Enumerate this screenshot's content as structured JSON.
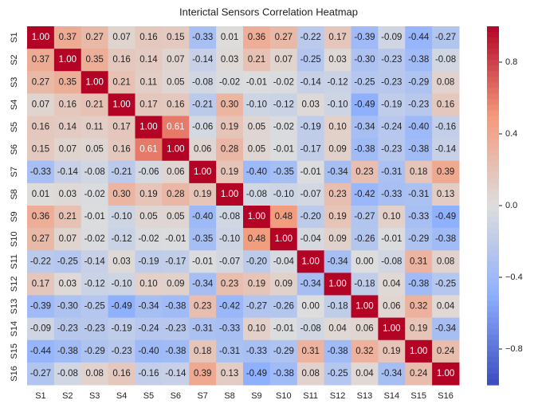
{
  "chart_data": {
    "type": "heatmap",
    "title": "Interictal Sensors Correlation Heatmap",
    "categories": [
      "S1",
      "S2",
      "S3",
      "S4",
      "S5",
      "S6",
      "S7",
      "S8",
      "S9",
      "S10",
      "S11",
      "S12",
      "S13",
      "S14",
      "S15",
      "S16"
    ],
    "values": [
      [
        1.0,
        0.37,
        0.27,
        0.07,
        0.16,
        0.15,
        -0.33,
        0.01,
        0.36,
        0.27,
        -0.22,
        0.17,
        -0.39,
        -0.09,
        -0.44,
        -0.27
      ],
      [
        0.37,
        1.0,
        0.35,
        0.16,
        0.14,
        0.07,
        -0.14,
        0.03,
        0.21,
        0.07,
        -0.25,
        0.03,
        -0.3,
        -0.23,
        -0.38,
        -0.08
      ],
      [
        0.27,
        0.35,
        1.0,
        0.21,
        0.11,
        0.05,
        -0.08,
        -0.02,
        -0.01,
        -0.02,
        -0.14,
        -0.12,
        -0.25,
        -0.23,
        -0.29,
        0.08
      ],
      [
        0.07,
        0.16,
        0.21,
        1.0,
        0.17,
        0.16,
        -0.21,
        0.3,
        -0.1,
        -0.12,
        0.03,
        -0.1,
        -0.49,
        -0.19,
        -0.23,
        0.16
      ],
      [
        0.16,
        0.14,
        0.11,
        0.17,
        1.0,
        0.61,
        -0.06,
        0.19,
        0.05,
        -0.02,
        -0.19,
        0.1,
        -0.34,
        -0.24,
        -0.4,
        -0.16
      ],
      [
        0.15,
        0.07,
        0.05,
        0.16,
        0.61,
        1.0,
        0.06,
        0.28,
        0.05,
        -0.01,
        -0.17,
        0.09,
        -0.38,
        -0.23,
        -0.38,
        -0.14
      ],
      [
        -0.33,
        -0.14,
        -0.08,
        -0.21,
        -0.06,
        0.06,
        1.0,
        0.19,
        -0.4,
        -0.35,
        -0.01,
        -0.34,
        0.23,
        -0.31,
        0.18,
        0.39
      ],
      [
        0.01,
        0.03,
        -0.02,
        0.3,
        0.19,
        0.28,
        0.19,
        1.0,
        -0.08,
        -0.1,
        -0.07,
        0.23,
        -0.42,
        -0.33,
        -0.31,
        0.13
      ],
      [
        0.36,
        0.21,
        -0.01,
        -0.1,
        0.05,
        0.05,
        -0.4,
        -0.08,
        1.0,
        0.48,
        -0.2,
        0.19,
        -0.27,
        0.1,
        -0.33,
        -0.49
      ],
      [
        0.27,
        0.07,
        -0.02,
        -0.12,
        -0.02,
        -0.01,
        -0.35,
        -0.1,
        0.48,
        1.0,
        -0.04,
        0.09,
        -0.26,
        -0.01,
        -0.29,
        -0.38
      ],
      [
        -0.22,
        -0.25,
        -0.14,
        0.03,
        -0.19,
        -0.17,
        -0.01,
        -0.07,
        -0.2,
        -0.04,
        1.0,
        -0.34,
        0.0,
        -0.08,
        0.31,
        0.08
      ],
      [
        0.17,
        0.03,
        -0.12,
        -0.1,
        0.1,
        0.09,
        -0.34,
        0.23,
        0.19,
        0.09,
        -0.34,
        1.0,
        -0.18,
        0.04,
        -0.38,
        -0.25
      ],
      [
        -0.39,
        -0.3,
        -0.25,
        -0.49,
        -0.34,
        -0.38,
        0.23,
        -0.42,
        -0.27,
        -0.26,
        0.0,
        -0.18,
        1.0,
        0.06,
        0.32,
        0.04
      ],
      [
        -0.09,
        -0.23,
        -0.23,
        -0.19,
        -0.24,
        -0.23,
        -0.31,
        -0.33,
        0.1,
        -0.01,
        -0.08,
        0.04,
        0.06,
        1.0,
        0.19,
        -0.34
      ],
      [
        -0.44,
        -0.38,
        -0.29,
        -0.23,
        -0.4,
        -0.38,
        0.18,
        -0.31,
        -0.33,
        -0.29,
        0.31,
        -0.38,
        0.32,
        0.19,
        1.0,
        0.24
      ],
      [
        -0.27,
        -0.08,
        0.08,
        0.16,
        -0.16,
        -0.14,
        0.39,
        0.13,
        -0.49,
        -0.38,
        0.08,
        -0.25,
        0.04,
        -0.34,
        0.24,
        1.0
      ]
    ],
    "value_labels": [
      [
        "1.00",
        "0.37",
        "0.27",
        "0.07",
        "0.16",
        "0.15",
        "-0.33",
        "0.01",
        "0.36",
        "0.27",
        "-0.22",
        "0.17",
        "-0.39",
        "-0.09",
        "-0.44",
        "-0.27"
      ],
      [
        "0.37",
        "1.00",
        "0.35",
        "0.16",
        "0.14",
        "0.07",
        "-0.14",
        "0.03",
        "0.21",
        "0.07",
        "-0.25",
        "0.03",
        "-0.30",
        "-0.23",
        "-0.38",
        "-0.08"
      ],
      [
        "0.27",
        "0.35",
        "1.00",
        "0.21",
        "0.11",
        "0.05",
        "-0.08",
        "-0.02",
        "-0.01",
        "-0.02",
        "-0.14",
        "-0.12",
        "-0.25",
        "-0.23",
        "-0.29",
        "0.08"
      ],
      [
        "0.07",
        "0.16",
        "0.21",
        "1.00",
        "0.17",
        "0.16",
        "-0.21",
        "0.30",
        "-0.10",
        "-0.12",
        "0.03",
        "-0.10",
        "-0.49",
        "-0.19",
        "-0.23",
        "0.16"
      ],
      [
        "0.16",
        "0.14",
        "0.11",
        "0.17",
        "1.00",
        "0.61",
        "-0.06",
        "0.19",
        "0.05",
        "-0.02",
        "-0.19",
        "0.10",
        "-0.34",
        "-0.24",
        "-0.40",
        "-0.16"
      ],
      [
        "0.15",
        "0.07",
        "0.05",
        "0.16",
        "0.61",
        "1.00",
        "0.06",
        "0.28",
        "0.05",
        "-0.01",
        "-0.17",
        "0.09",
        "-0.38",
        "-0.23",
        "-0.38",
        "-0.14"
      ],
      [
        "-0.33",
        "-0.14",
        "-0.08",
        "-0.21",
        "-0.06",
        "0.06",
        "1.00",
        "0.19",
        "-0.40",
        "-0.35",
        "-0.01",
        "-0.34",
        "0.23",
        "-0.31",
        "0.18",
        "0.39"
      ],
      [
        "0.01",
        "0.03",
        "-0.02",
        "0.30",
        "0.19",
        "0.28",
        "0.19",
        "1.00",
        "-0.08",
        "-0.10",
        "-0.07",
        "0.23",
        "-0.42",
        "-0.33",
        "-0.31",
        "0.13"
      ],
      [
        "0.36",
        "0.21",
        "-0.01",
        "-0.10",
        "0.05",
        "0.05",
        "-0.40",
        "-0.08",
        "1.00",
        "0.48",
        "-0.20",
        "0.19",
        "-0.27",
        "0.10",
        "-0.33",
        "-0.49"
      ],
      [
        "0.27",
        "0.07",
        "-0.02",
        "-0.12",
        "-0.02",
        "-0.01",
        "-0.35",
        "-0.10",
        "0.48",
        "1.00",
        "-0.04",
        "0.09",
        "-0.26",
        "-0.01",
        "-0.29",
        "-0.38"
      ],
      [
        "-0.22",
        "-0.25",
        "-0.14",
        "0.03",
        "-0.19",
        "-0.17",
        "-0.01",
        "-0.07",
        "-0.20",
        "-0.04",
        "1.00",
        "-0.34",
        "0.00",
        "-0.08",
        "0.31",
        "0.08"
      ],
      [
        "0.17",
        "0.03",
        "-0.12",
        "-0.10",
        "0.10",
        "0.09",
        "-0.34",
        "0.23",
        "0.19",
        "0.09",
        "-0.34",
        "1.00",
        "-0.18",
        "0.04",
        "-0.38",
        "-0.25"
      ],
      [
        "-0.39",
        "-0.30",
        "-0.25",
        "-0.49",
        "-0.34",
        "-0.38",
        "0.23",
        "-0.42",
        "-0.27",
        "-0.26",
        "0.00",
        "-0.18",
        "1.00",
        "0.06",
        "0.32",
        "0.04"
      ],
      [
        "-0.09",
        "-0.23",
        "-0.23",
        "-0.19",
        "-0.24",
        "-0.23",
        "-0.31",
        "-0.33",
        "0.10",
        "-0.01",
        "-0.08",
        "0.04",
        "0.06",
        "1.00",
        "0.19",
        "-0.34"
      ],
      [
        "-0.44",
        "-0.38",
        "-0.29",
        "-0.23",
        "-0.40",
        "-0.38",
        "0.18",
        "-0.31",
        "-0.33",
        "-0.29",
        "0.31",
        "-0.38",
        "0.32",
        "0.19",
        "1.00",
        "0.24"
      ],
      [
        "-0.27",
        "-0.08",
        "0.08",
        "0.16",
        "-0.16",
        "-0.14",
        "0.39",
        "0.13",
        "-0.49",
        "-0.38",
        "0.08",
        "-0.25",
        "0.04",
        "-0.34",
        "0.24",
        "1.00"
      ]
    ],
    "colormap": "coolwarm",
    "clim": [
      -1,
      1
    ],
    "cticks": [
      0.8,
      0.4,
      {
        "value": 0,
        "label": "0.0"
      },
      {
        "value": -0.4,
        "label": "−0.4"
      },
      {
        "value": -0.8,
        "label": "−0.8"
      }
    ]
  }
}
